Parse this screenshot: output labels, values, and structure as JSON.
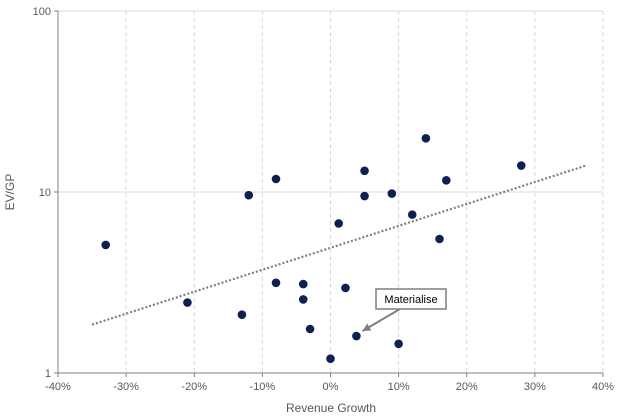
{
  "chart_data": {
    "type": "scatter",
    "title": "",
    "xlabel": "Revenue Growth",
    "ylabel": "EV/GP",
    "xlim": [
      -0.4,
      0.4
    ],
    "ylim": [
      1,
      100
    ],
    "yscale": "log",
    "x_ticks": [
      -0.4,
      -0.3,
      -0.2,
      -0.1,
      0,
      0.1,
      0.2,
      0.3,
      0.4
    ],
    "x_tick_labels": [
      "-40%",
      "-30%",
      "-20%",
      "-10%",
      "0%",
      "10%",
      "20%",
      "30%",
      "40%"
    ],
    "y_ticks": [
      1,
      10,
      100
    ],
    "y_tick_labels": [
      "1",
      "10",
      "100"
    ],
    "grid": {
      "vertical": true,
      "horizontal": true,
      "style": "dashed-vertical"
    },
    "marker_color": "#0e2050",
    "trendline_color": "#7f7f7f",
    "points": [
      {
        "x": -0.33,
        "y": 5.1
      },
      {
        "x": -0.21,
        "y": 2.45
      },
      {
        "x": -0.13,
        "y": 2.1
      },
      {
        "x": -0.12,
        "y": 9.6
      },
      {
        "x": -0.08,
        "y": 11.8
      },
      {
        "x": -0.08,
        "y": 3.15
      },
      {
        "x": -0.04,
        "y": 3.1
      },
      {
        "x": -0.04,
        "y": 2.55
      },
      {
        "x": -0.03,
        "y": 1.75
      },
      {
        "x": 0.0,
        "y": 1.2
      },
      {
        "x": 0.012,
        "y": 6.7
      },
      {
        "x": 0.022,
        "y": 2.95
      },
      {
        "x": 0.038,
        "y": 1.6
      },
      {
        "x": 0.05,
        "y": 13.1
      },
      {
        "x": 0.05,
        "y": 9.5
      },
      {
        "x": 0.09,
        "y": 9.8
      },
      {
        "x": 0.1,
        "y": 1.45
      },
      {
        "x": 0.12,
        "y": 7.5
      },
      {
        "x": 0.14,
        "y": 19.8
      },
      {
        "x": 0.16,
        "y": 5.5
      },
      {
        "x": 0.17,
        "y": 11.6
      },
      {
        "x": 0.28,
        "y": 14.0
      }
    ],
    "trendline": {
      "type": "exponential",
      "start": {
        "x": -0.35,
        "y": 1.85
      },
      "end": {
        "x": 0.375,
        "y": 14.0
      }
    },
    "annotations": [
      {
        "label": "Materialise",
        "target": {
          "x": 0.038,
          "y": 1.6
        }
      }
    ]
  }
}
